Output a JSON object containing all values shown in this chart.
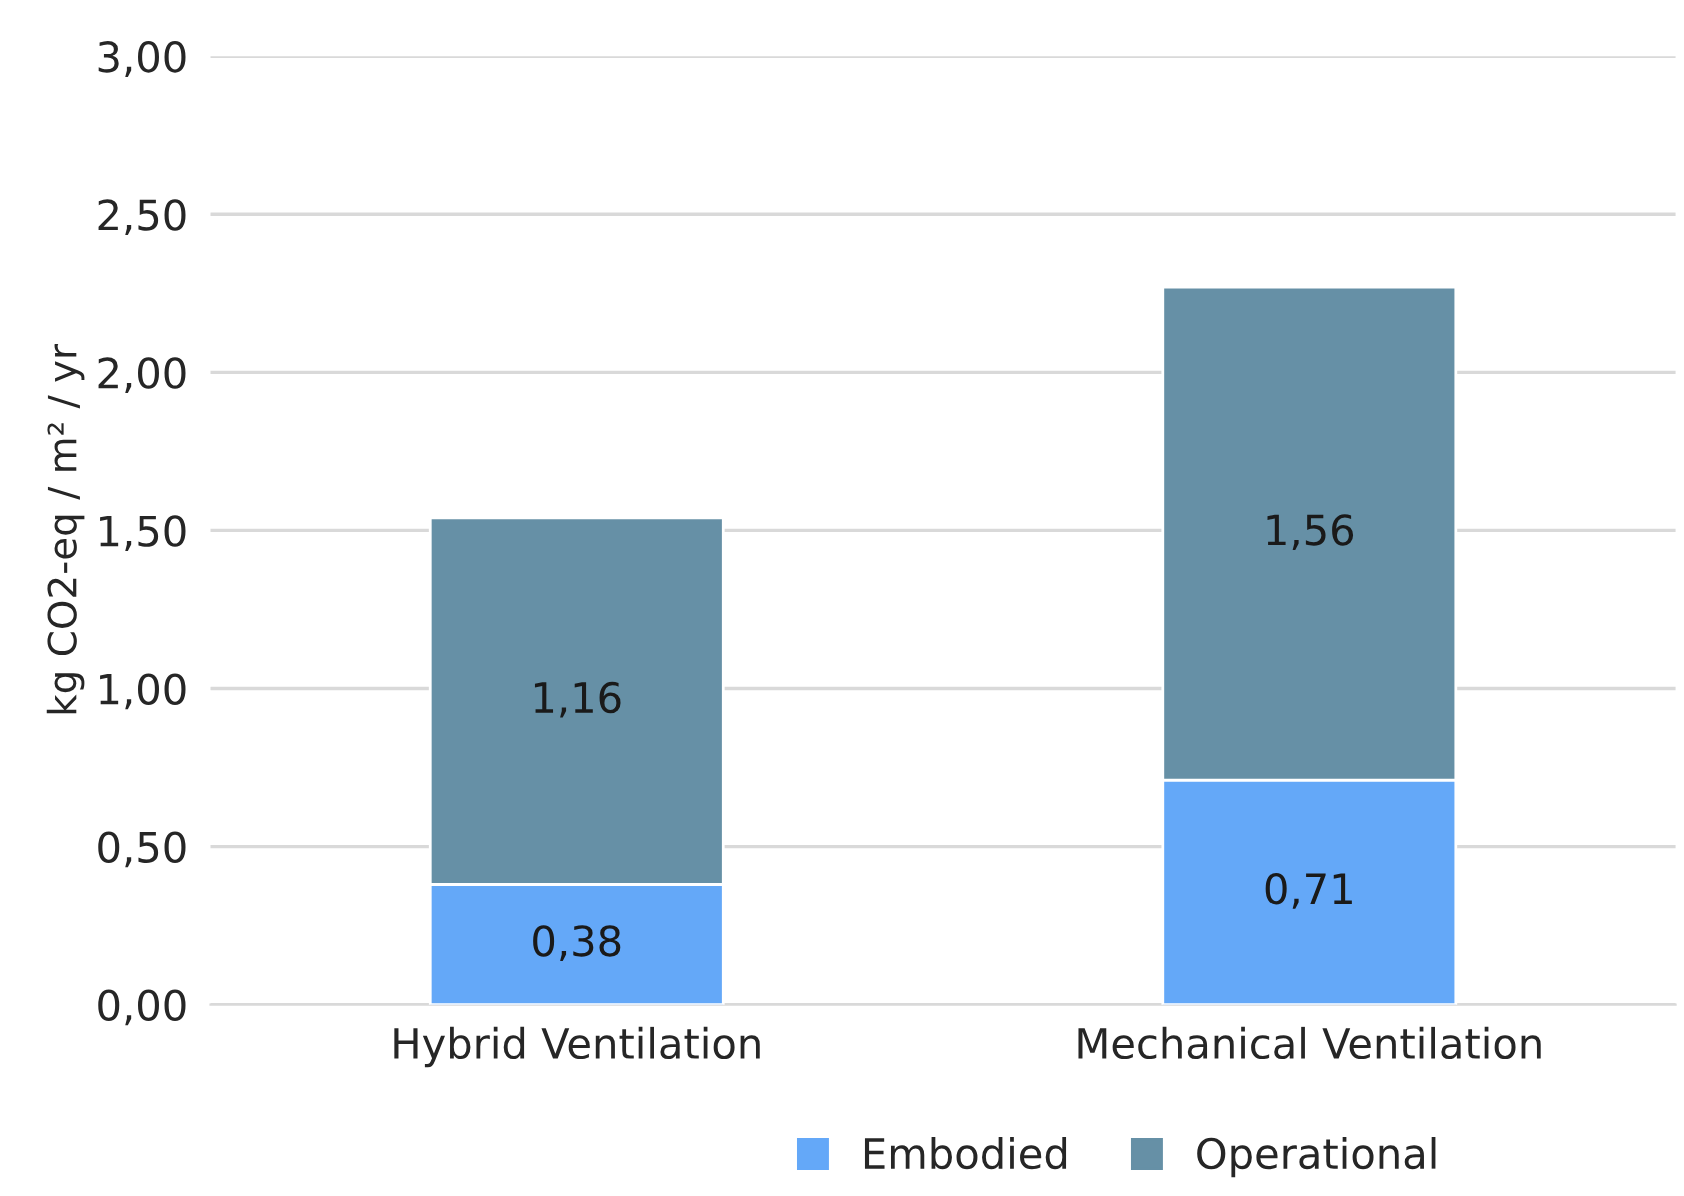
{
  "chart_data": {
    "type": "bar",
    "stacked": true,
    "ylabel": "kg CO2-eq / m² / yr",
    "categories": [
      "Hybrid Ventilation",
      "Mechanical Ventilation"
    ],
    "series": [
      {
        "name": "Embodied",
        "color": "#64a8f8",
        "values": [
          0.38,
          0.71
        ],
        "value_labels": [
          "0,38",
          "0,71"
        ]
      },
      {
        "name": "Operational",
        "color": "#6690a6",
        "values": [
          1.16,
          1.56
        ],
        "value_labels": [
          "1,16",
          "1,56"
        ]
      }
    ],
    "ylim": [
      0,
      3
    ],
    "yticks": [
      {
        "value": 0,
        "label": "0,00"
      },
      {
        "value": 0.5,
        "label": "0,50"
      },
      {
        "value": 1,
        "label": "1,00"
      },
      {
        "value": 1.5,
        "label": "1,50"
      },
      {
        "value": 2,
        "label": "2,00"
      },
      {
        "value": 2.5,
        "label": "2,50"
      },
      {
        "value": 3,
        "label": "3,00"
      }
    ],
    "grid": "y",
    "legend": "bottom"
  }
}
